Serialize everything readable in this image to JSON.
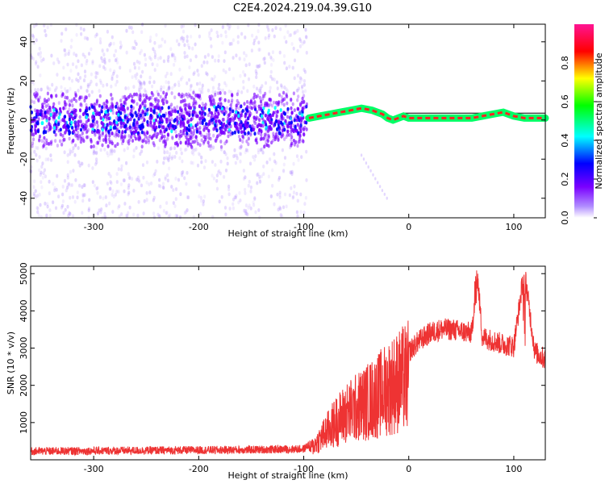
{
  "figure": {
    "title": "C2E4.2024.219.04.39.G10"
  },
  "chart_data": [
    {
      "type": "heatmap",
      "xlabel": "Height of straight line (km)",
      "ylabel": "Frequency (Hz)",
      "xlim": [
        -360,
        130
      ],
      "ylim": [
        -50,
        49
      ],
      "xticks": [
        -300,
        -200,
        -100,
        0,
        100
      ],
      "yticks": [
        -40,
        -20,
        0,
        20,
        40
      ],
      "colorbar": {
        "label": "Normalized spectral amplitude",
        "range": [
          0,
          1
        ],
        "ticks": [
          "0.0",
          "0.2",
          "0.4",
          "0.6",
          "0.8"
        ],
        "colors": [
          "#ffffff",
          "#7a00ff",
          "#0000ff",
          "#00ffff",
          "#00ff00",
          "#ffff00",
          "#ff0000",
          "#ff1493"
        ]
      },
      "ridge": {
        "x": [
          -95,
          -85,
          -75,
          -65,
          -55,
          -45,
          -35,
          -25,
          -20,
          -15,
          -10,
          -5,
          0,
          10,
          20,
          30,
          40,
          50,
          60,
          70,
          80,
          90,
          100,
          110,
          120,
          130
        ],
        "y": [
          1,
          2,
          3,
          4,
          5,
          6,
          5,
          3,
          1,
          0,
          1,
          2,
          1,
          1,
          1,
          1,
          1,
          1,
          1,
          2,
          3,
          4,
          2,
          1,
          1,
          1
        ]
      },
      "noise_band": {
        "x_end": -97,
        "center": 0,
        "spread": 15
      },
      "grid": false
    },
    {
      "type": "line",
      "xlabel": "Height of straight line (km)",
      "ylabel": "SNR (10 * v/v)",
      "xlim": [
        -360,
        130
      ],
      "ylim": [
        0,
        5200
      ],
      "xticks": [
        -300,
        -200,
        -100,
        0,
        100
      ],
      "yticks": [
        1000,
        2000,
        3000,
        4000,
        5000
      ],
      "color": "#ee3333",
      "series": [
        {
          "x": [
            -360,
            -300,
            -250,
            -200,
            -150,
            -100,
            -90,
            -80,
            -70,
            -60,
            -50,
            -40,
            -30,
            -20,
            -10,
            0,
            10,
            20,
            30,
            40,
            50,
            60,
            65,
            70,
            80,
            90,
            100,
            110,
            120,
            130
          ],
          "values": [
            200,
            210,
            220,
            230,
            240,
            260,
            500,
            900,
            1300,
            1600,
            1800,
            2000,
            2200,
            2500,
            2700,
            2900,
            3200,
            3400,
            3500,
            3500,
            3450,
            3400,
            5100,
            3300,
            3200,
            3100,
            3050,
            5100,
            2900,
            2700
          ]
        }
      ],
      "grid": false
    }
  ]
}
